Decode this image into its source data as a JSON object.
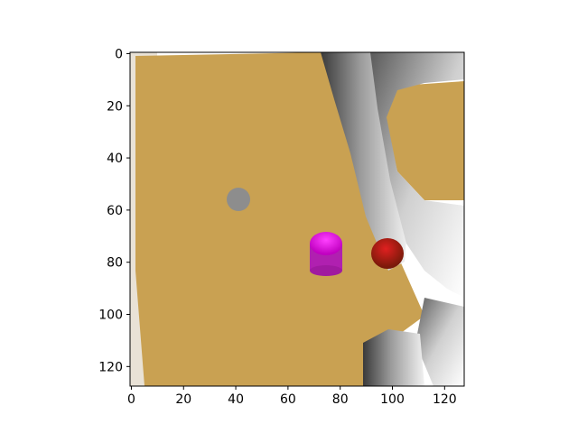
{
  "image_view": {
    "x_ticks": [
      "0",
      "20",
      "40",
      "60",
      "80",
      "100",
      "120"
    ],
    "y_ticks": [
      "0",
      "20",
      "40",
      "60",
      "80",
      "100",
      "120"
    ],
    "x_range": [
      -0.5,
      127.5
    ],
    "y_range": [
      127.5,
      -0.5
    ],
    "scene": {
      "table_color": "#c8a050",
      "background_left_color": "#e9e2d6",
      "robot_arm_color": "#8a8a8a",
      "objects": [
        {
          "name": "gray-sphere",
          "color": "#8c8c8c",
          "x": 41,
          "y": 56
        },
        {
          "name": "magenta-cylinder",
          "color": "#ff00ff",
          "x": 75,
          "y": 76
        },
        {
          "name": "red-sphere",
          "color": "#d01010",
          "x": 98,
          "y": 76
        }
      ]
    }
  }
}
